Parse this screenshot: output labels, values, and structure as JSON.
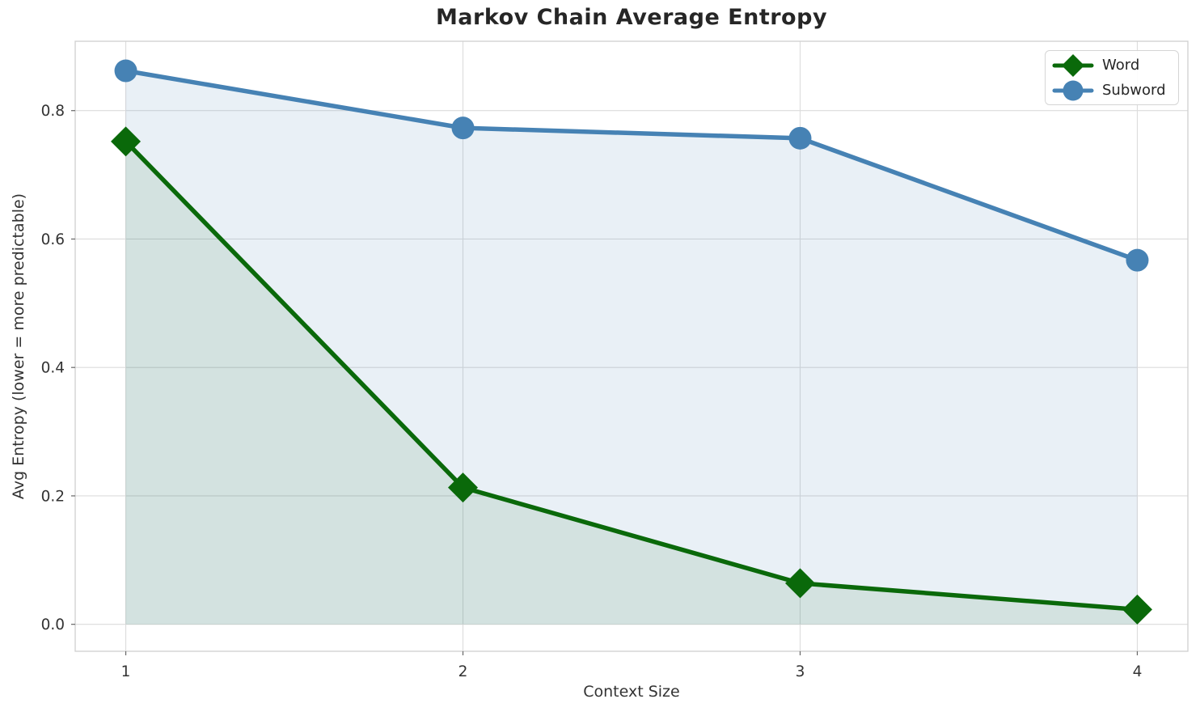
{
  "chart_data": {
    "type": "line",
    "title": "Markov Chain Average Entropy",
    "xlabel": "Context Size",
    "ylabel": "Avg Entropy (lower = more predictable)",
    "x": [
      1,
      2,
      3,
      4
    ],
    "series": [
      {
        "name": "Word",
        "values": [
          0.752,
          0.213,
          0.064,
          0.023
        ],
        "color": "#0a690a",
        "marker": "diamond",
        "fill": true,
        "fill_opacity": 0.1,
        "line_width": 5.5
      },
      {
        "name": "Subword",
        "values": [
          0.862,
          0.773,
          0.757,
          0.567
        ],
        "color": "#4682b4",
        "marker": "circle",
        "fill": true,
        "fill_opacity": 0.12,
        "line_width": 5.5
      }
    ],
    "xticks": {
      "values": [
        1,
        2,
        3,
        4
      ],
      "labels": [
        "1",
        "2",
        "3",
        "4"
      ]
    },
    "yticks": {
      "values": [
        0,
        0.2,
        0.4,
        0.6,
        0.8
      ],
      "labels": [
        "0.0",
        "0.2",
        "0.4",
        "0.6",
        "0.8"
      ]
    },
    "xlim": [
      0.85,
      4.15
    ],
    "ylim": [
      -0.042,
      0.908
    ],
    "fill_baseline": 0,
    "grid": true,
    "legend": {
      "position": "upper right",
      "entries": [
        "Word",
        "Subword"
      ]
    }
  },
  "colors": {
    "background": "#ffffff",
    "grid": "#dcdcdc",
    "spine": "#cfcfcf",
    "tick_mark": "#666666",
    "tick_label": "#333333",
    "text": "#262626"
  }
}
